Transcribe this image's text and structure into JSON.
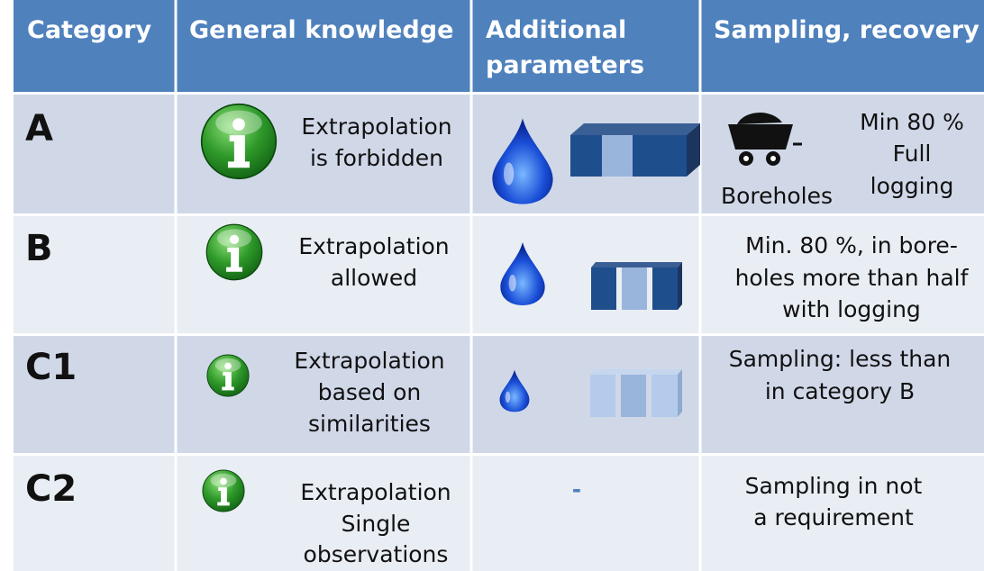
{
  "table": {
    "headers": [
      "Category",
      "General knowledge",
      "Additional parameters",
      "Sampling, recovery"
    ],
    "rows": [
      {
        "category": "A",
        "knowledge": [
          "Extrapolation",
          "is forbidden"
        ],
        "sampling_label": "Boreholes",
        "sampling": [
          "Min 80 %",
          "Full",
          "logging"
        ]
      },
      {
        "category": "B",
        "knowledge": [
          "Extrapolation",
          "allowed"
        ],
        "sampling": [
          "Min. 80 %, in bore-",
          "holes more than half",
          "with logging"
        ]
      },
      {
        "category": "C1",
        "knowledge": [
          "Extrapolation",
          "based on",
          "similarities"
        ],
        "sampling": [
          "Sampling: less than",
          "in category B"
        ]
      },
      {
        "category": "C2",
        "knowledge": [
          "Extrapolation",
          "Single",
          "observations"
        ],
        "params": "-",
        "sampling": [
          "Sampling in not",
          "a requirement"
        ]
      }
    ]
  }
}
